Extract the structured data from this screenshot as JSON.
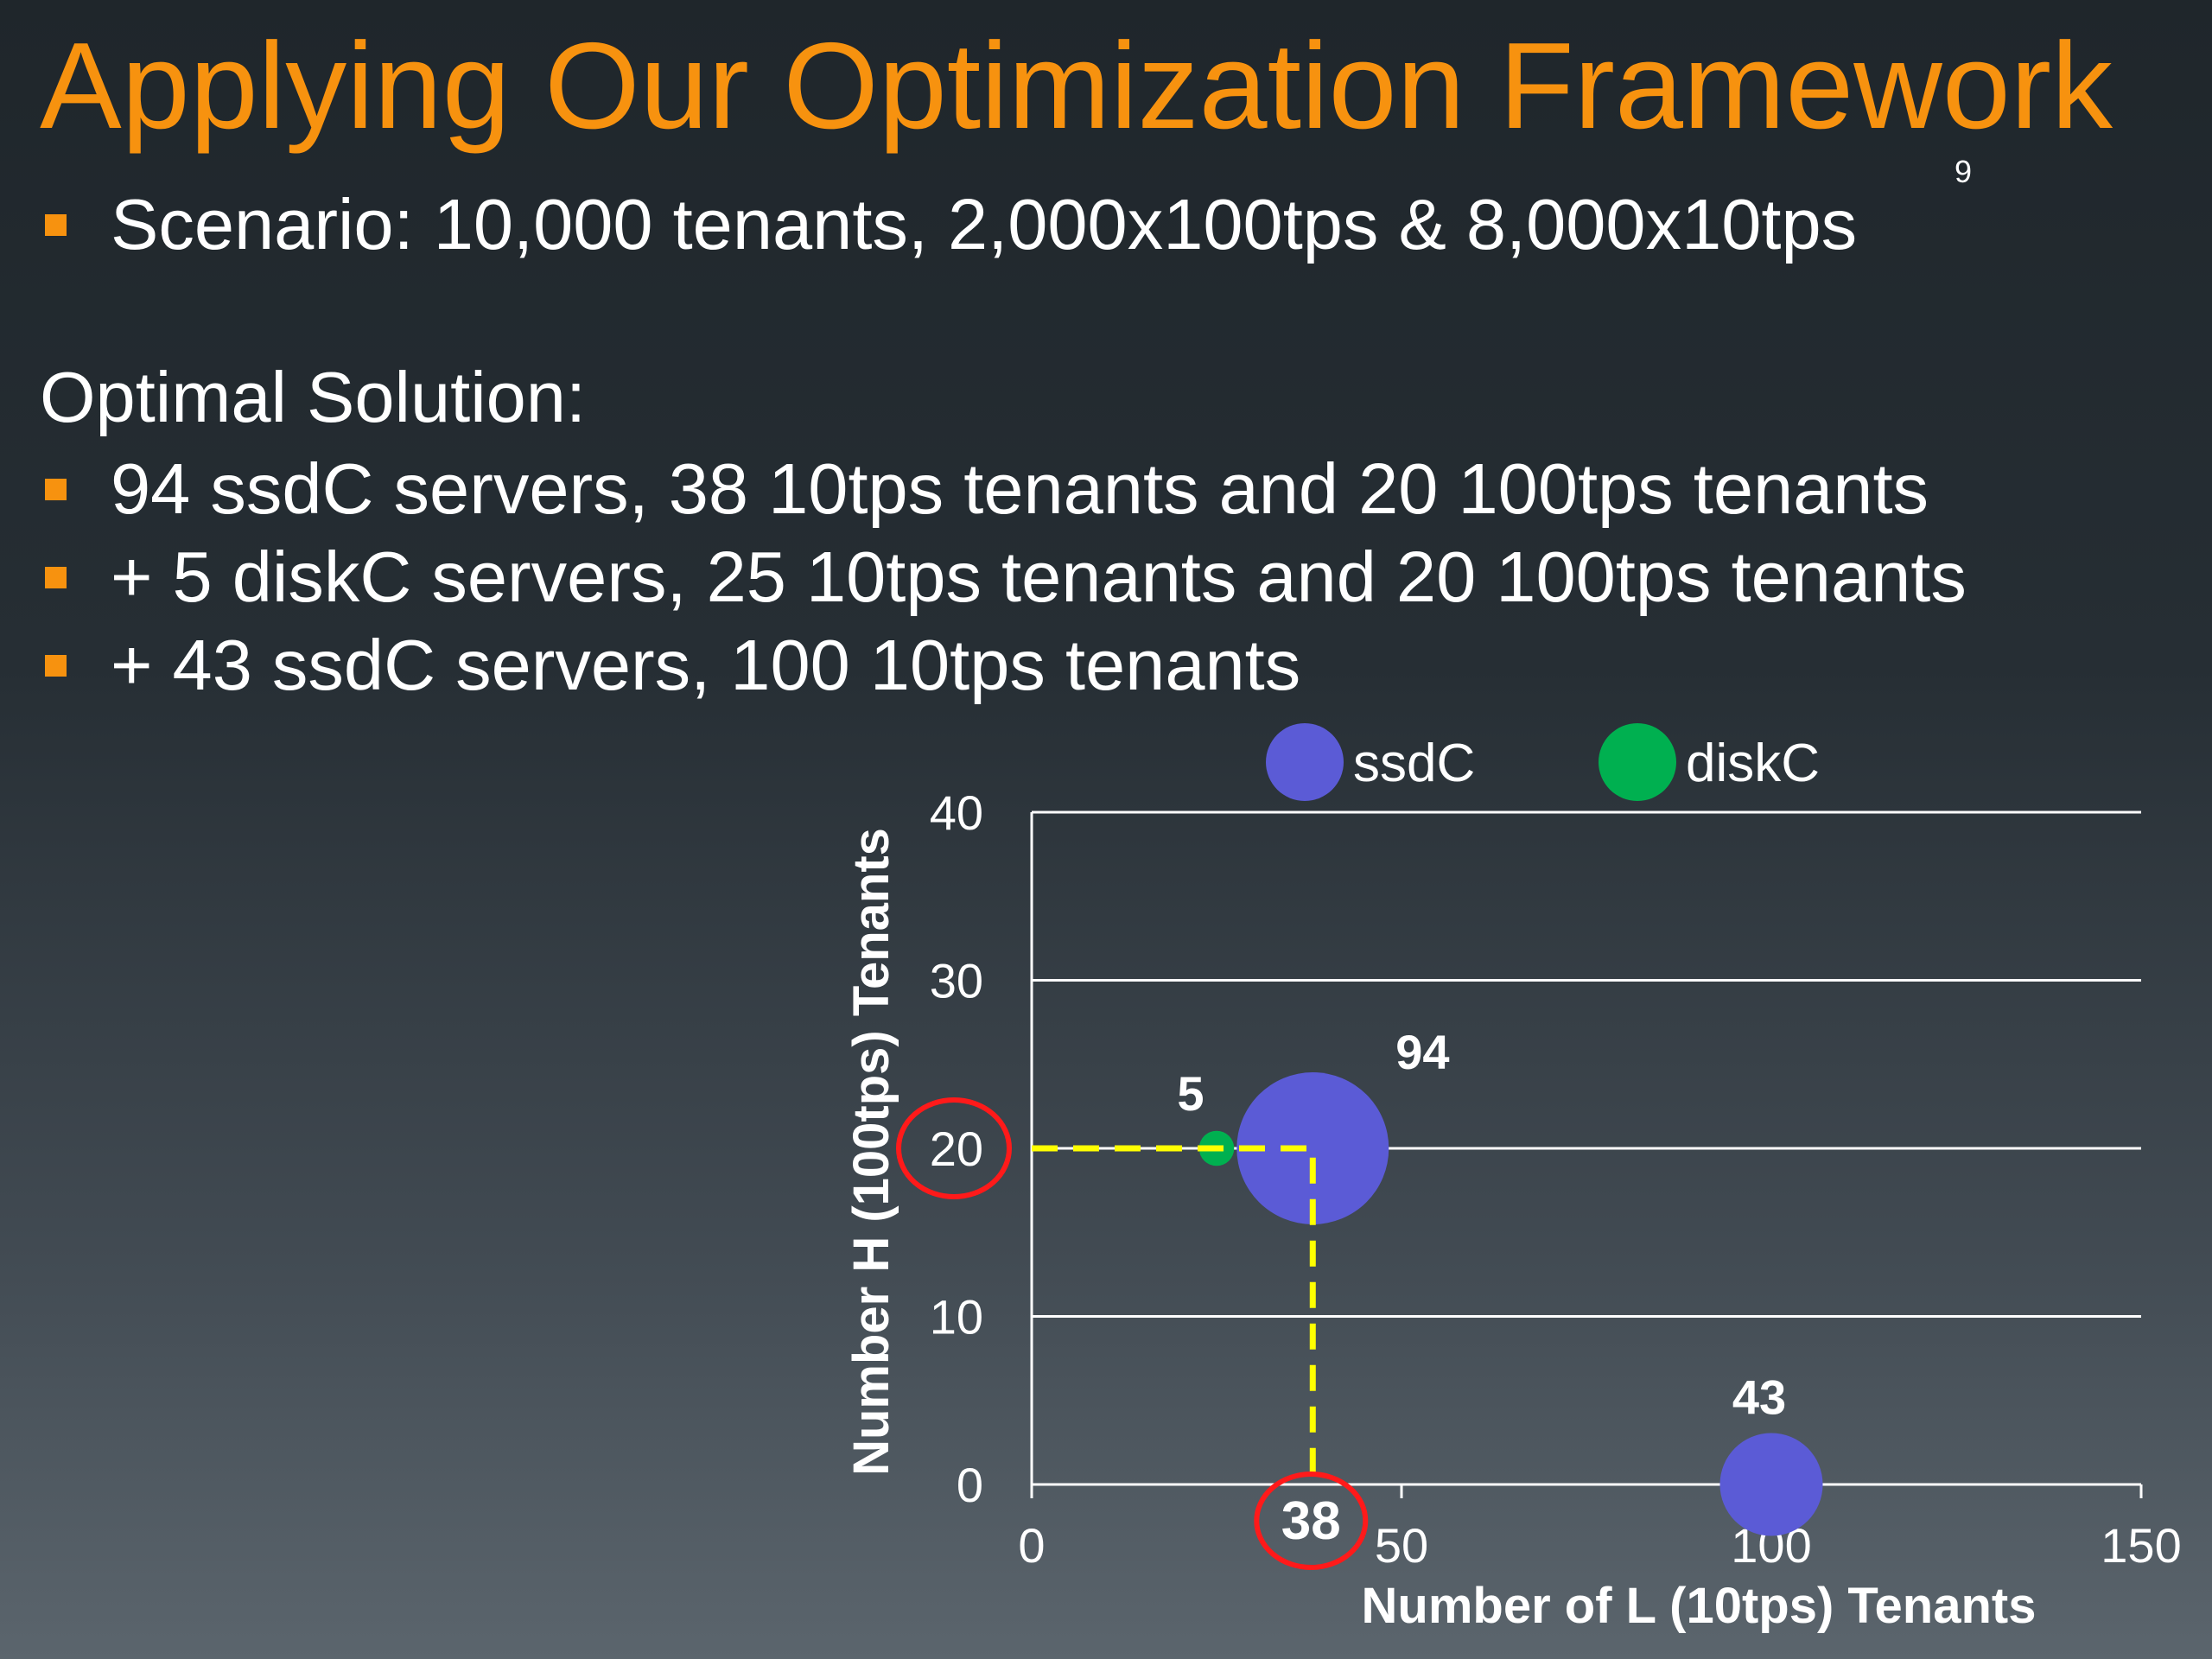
{
  "slide": {
    "title": "Applying Our Optimization Framework",
    "slide_number": "9",
    "scenario_bullet": "Scenario: 10,000 tenants, 2,000x100tps & 8,000x10tps",
    "solution_heading": "Optimal Solution:",
    "solution_bullets": [
      "94 ssdC servers, 38 10tps tenants and 20 100tps tenants",
      "+ 5 diskC servers, 25 10tps tenants and 20 100tps tenants",
      "+ 43 ssdC servers, 100 10tps tenants"
    ]
  },
  "colors": {
    "title": "#f7920f",
    "bullet": "#f7920f",
    "ssdC": "#5b5bd6",
    "diskC": "#00b050",
    "guide": "#ffff00",
    "highlight": "#ff1a1a"
  },
  "chart_data": {
    "type": "bubble",
    "xlabel": "Number of L (10tps) Tenants",
    "ylabel": "Number H (100tps) Tenants",
    "xlim": [
      0,
      150
    ],
    "ylim": [
      0,
      40
    ],
    "x_ticks": [
      0,
      50,
      100,
      150
    ],
    "y_ticks": [
      0,
      10,
      20,
      30,
      40
    ],
    "grid": "horizontal",
    "legend_position": "top",
    "series": [
      {
        "name": "ssdC",
        "color": "#5b5bd6",
        "points": [
          {
            "x": 38,
            "y": 20,
            "size": 94,
            "label": "94"
          },
          {
            "x": 100,
            "y": 0,
            "size": 43,
            "label": "43"
          }
        ]
      },
      {
        "name": "diskC",
        "color": "#00b050",
        "points": [
          {
            "x": 25,
            "y": 20,
            "size": 5,
            "label": "5"
          }
        ]
      }
    ],
    "annotations": {
      "guide_x": 38,
      "guide_y": 20,
      "circled_y_tick": "20",
      "circled_x_value": "38"
    }
  }
}
